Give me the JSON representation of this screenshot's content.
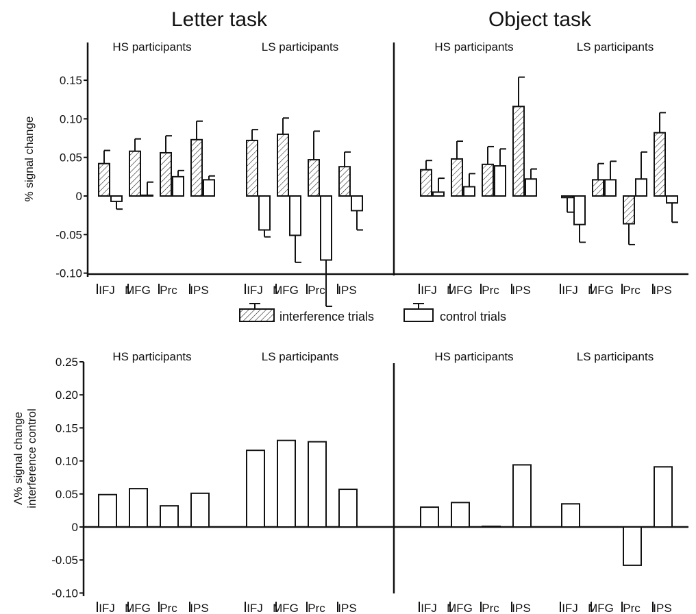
{
  "titles": {
    "left": "Letter task",
    "right": "Object task"
  },
  "colors": {
    "ink": "#111111",
    "fill": "#ffffff"
  },
  "legend": {
    "interference": "interference trials",
    "control": "control trials"
  },
  "chart_data": [
    {
      "type": "bar",
      "ylabel": "% signal change",
      "ylim": [
        -0.1,
        0.15
      ],
      "yticks": [
        0.15,
        0.1,
        0.05,
        0,
        -0.05,
        -0.1
      ],
      "ytick_labels": [
        "0.15",
        "0.10",
        "0.05",
        "0",
        "-0.05",
        "-0.10"
      ],
      "regions": [
        "IFJ",
        "MFG",
        "Prc",
        "IPS"
      ],
      "panels": [
        {
          "task": "Letter task",
          "groups": [
            {
              "name": "HS participants",
              "interference": [
                0.042,
                0.058,
                0.056,
                0.073
              ],
              "interference_err": [
                0.017,
                0.016,
                0.022,
                0.024
              ],
              "control": [
                -0.007,
                0.001,
                0.025,
                0.021
              ],
              "control_err": [
                0.01,
                0.017,
                0.008,
                0.005
              ]
            },
            {
              "name": "LS participants",
              "interference": [
                0.072,
                0.08,
                0.047,
                0.038
              ],
              "interference_err": [
                0.014,
                0.021,
                0.037,
                0.019
              ],
              "control": [
                -0.044,
                -0.051,
                -0.083,
                -0.019
              ],
              "control_err": [
                0.009,
                0.035,
                0.06,
                0.025
              ]
            }
          ]
        },
        {
          "task": "Object task",
          "groups": [
            {
              "name": "HS participants",
              "interference": [
                0.034,
                0.048,
                0.041,
                0.116
              ],
              "interference_err": [
                0.012,
                0.023,
                0.023,
                0.038
              ],
              "control": [
                0.005,
                0.012,
                0.039,
                0.022
              ],
              "control_err": [
                0.018,
                0.017,
                0.022,
                0.013
              ]
            },
            {
              "name": "LS participants",
              "interference": [
                -0.002,
                0.021,
                -0.036,
                0.082
              ],
              "interference_err": [
                0.019,
                0.021,
                0.027,
                0.026
              ],
              "control": [
                -0.037,
                0.021,
                0.022,
                -0.009
              ],
              "control_err": [
                0.023,
                0.024,
                0.035,
                0.025
              ]
            }
          ]
        }
      ]
    },
    {
      "type": "bar",
      "ylabel": "Λ% signal change interference control",
      "ylabel_lines": [
        "Λ% signal change",
        "interference control"
      ],
      "ylim": [
        -0.1,
        0.25
      ],
      "yticks": [
        0.25,
        0.2,
        0.15,
        0.1,
        0.05,
        0,
        -0.05,
        -0.1
      ],
      "ytick_labels": [
        "0.25",
        "0.20",
        "0.15",
        "0.10",
        "0.05",
        "0",
        "-0.05",
        "-0.10"
      ],
      "regions": [
        "IFJ",
        "MFG",
        "Prc",
        "IPS"
      ],
      "panels": [
        {
          "task": "Letter task",
          "groups": [
            {
              "name": "HS participants",
              "values": [
                0.049,
                0.058,
                0.032,
                0.051
              ]
            },
            {
              "name": "LS participants",
              "values": [
                0.116,
                0.131,
                0.129,
                0.057
              ]
            }
          ]
        },
        {
          "task": "Object task",
          "groups": [
            {
              "name": "HS participants",
              "values": [
                0.03,
                0.037,
                0.001,
                0.094
              ]
            },
            {
              "name": "LS participants",
              "values": [
                0.035,
                0.0,
                -0.058,
                0.091
              ]
            }
          ]
        }
      ]
    }
  ]
}
